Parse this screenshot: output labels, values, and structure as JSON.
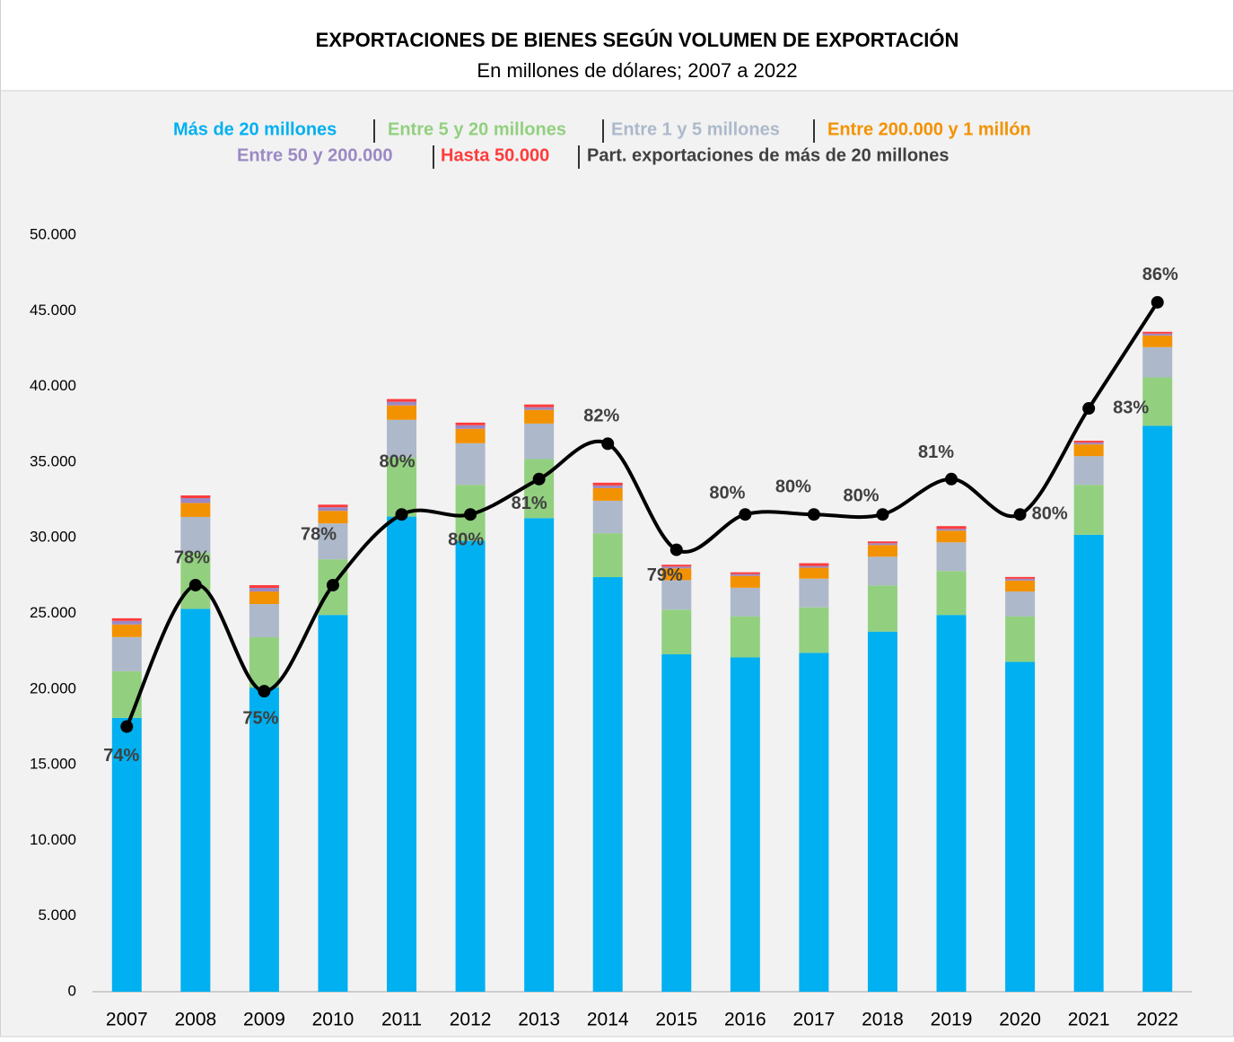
{
  "chart_data": {
    "type": "stacked_bar_line",
    "title": "EXPORTACIONES DE BIENES SEGÚN VOLUMEN DE EXPORTACIÓN",
    "subtitle": "En millones de dólares; 2007 a 2022",
    "categories": [
      "2007",
      "2008",
      "2009",
      "2010",
      "2011",
      "2012",
      "2013",
      "2014",
      "2015",
      "2016",
      "2017",
      "2018",
      "2019",
      "2020",
      "2021",
      "2022"
    ],
    "ylim": [
      0,
      50000
    ],
    "yticks": [
      0,
      {
        "value": 5000,
        "label": "5.000"
      },
      {
        "value": 10000,
        "label": "10.000"
      },
      {
        "value": 15000,
        "label": "15.000"
      },
      {
        "value": 20000,
        "label": "20.000"
      },
      {
        "value": 25000,
        "label": "25.000"
      },
      {
        "value": 30000,
        "label": "30.000"
      },
      {
        "value": 35000,
        "label": "35.000"
      },
      {
        "value": 40000,
        "label": "40.000"
      },
      {
        "value": 45000,
        "label": "45.000"
      },
      {
        "value": 50000,
        "label": "50.000"
      }
    ],
    "y2lim": [
      66.5,
      87.9
    ],
    "grid": false,
    "legend": "top",
    "series": [
      {
        "name": "Más de 20 millones",
        "color": "#00b0f0",
        "values": [
          18100,
          25300,
          20100,
          24900,
          31400,
          29800,
          31300,
          27400,
          22300,
          22100,
          22400,
          23800,
          24900,
          21800,
          30200,
          37400
        ]
      },
      {
        "name": "Entre 5 y 20 millones",
        "color": "#92d07f",
        "values": [
          3080,
          3700,
          3330,
          3680,
          3900,
          3700,
          3900,
          2900,
          2950,
          2700,
          3000,
          3050,
          2900,
          3000,
          3300,
          3200
        ]
      },
      {
        "name": "Entre 1 y 5 millones",
        "color": "#adb9ca",
        "values": [
          2260,
          2380,
          2190,
          2370,
          2500,
          2750,
          2350,
          2150,
          1950,
          1900,
          1900,
          1900,
          1900,
          1650,
          1900,
          2000
        ]
      },
      {
        "name": "Entre 200.000 y 1 millón",
        "color": "#f39200",
        "values": [
          830,
          920,
          830,
          830,
          950,
          950,
          900,
          830,
          780,
          780,
          720,
          770,
          770,
          720,
          770,
          770
        ]
      },
      {
        "name": "Entre 50 y 200.000",
        "color": "#9b89c4",
        "values": [
          240,
          320,
          240,
          240,
          240,
          240,
          180,
          180,
          120,
          120,
          120,
          120,
          120,
          120,
          120,
          120
        ]
      },
      {
        "name": "Hasta 50.000",
        "color": "#ff3b3b",
        "values": [
          170,
          180,
          180,
          170,
          180,
          170,
          180,
          180,
          120,
          120,
          180,
          120,
          180,
          120,
          120,
          120
        ]
      },
      {
        "name": "Part. exportaciones de más de 20 millones",
        "color": "#000000",
        "axis": "y2",
        "type": "line",
        "values": [
          74,
          78,
          75,
          78,
          80,
          80,
          81,
          82,
          79,
          80,
          80,
          80,
          81,
          80,
          83,
          86
        ],
        "value_labels": [
          "74%",
          "78%",
          "75%",
          "78%",
          "80%",
          "80%",
          "81%",
          "82%",
          "79%",
          "80%",
          "80%",
          "80%",
          "81%",
          "80%",
          "83%",
          "86%"
        ]
      }
    ]
  }
}
